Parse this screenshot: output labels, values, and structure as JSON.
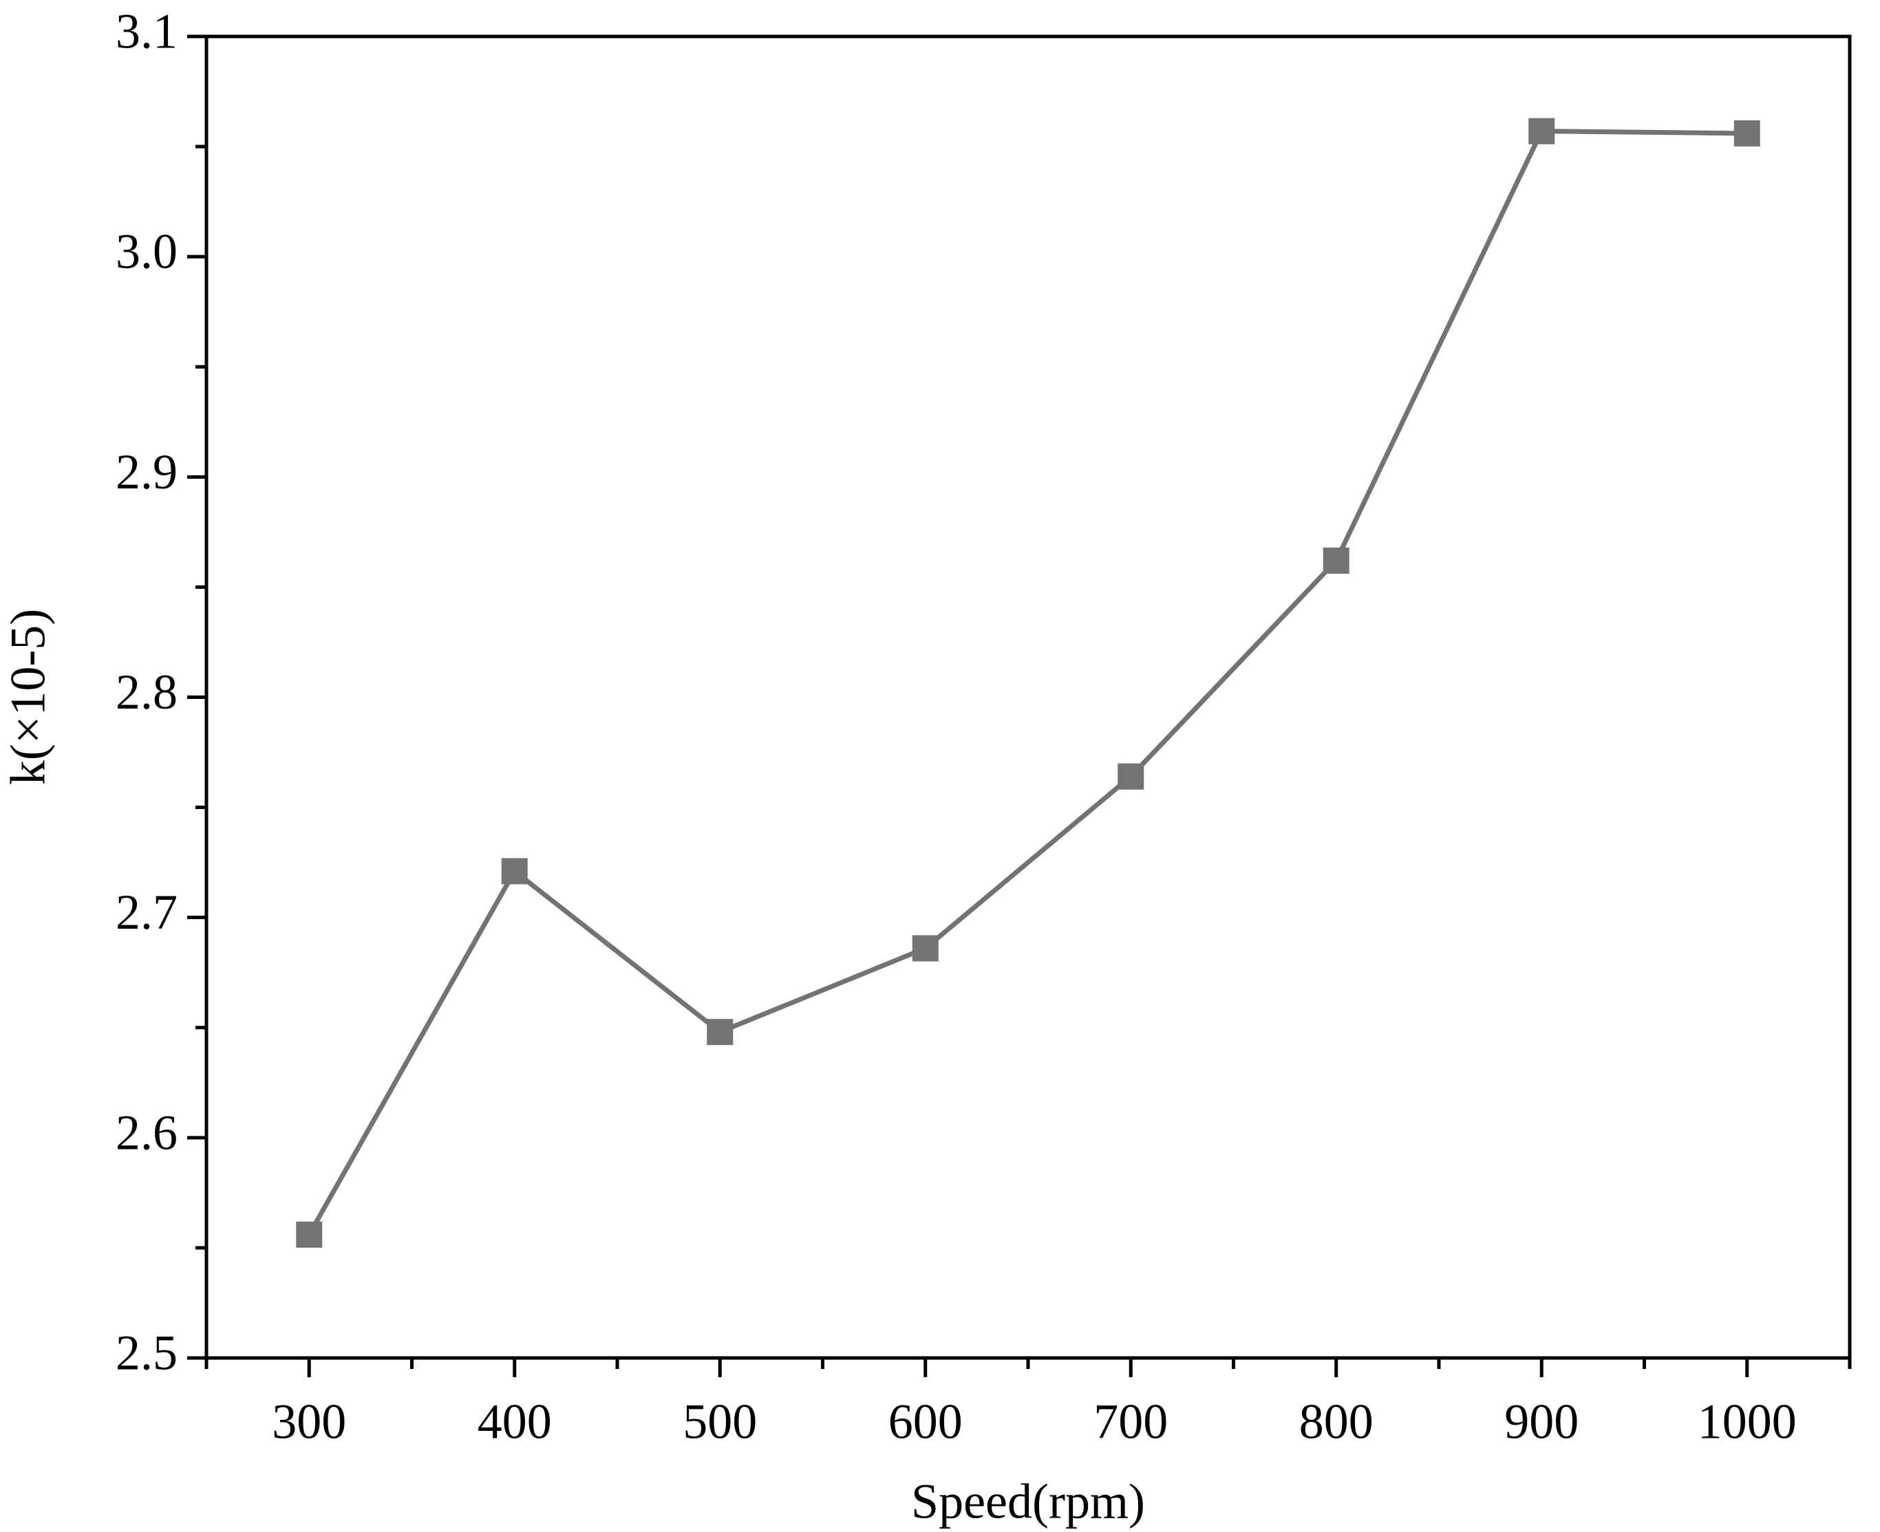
{
  "chart_data": {
    "type": "line",
    "x_label": "Speed(rpm)",
    "y_label": "k(×10-5)",
    "x": [
      300,
      400,
      500,
      600,
      700,
      800,
      900,
      1000
    ],
    "series": [
      {
        "name": "k",
        "color": "#737373",
        "values": [
          2.556,
          2.721,
          2.648,
          2.686,
          2.764,
          2.862,
          3.057,
          3.056
        ]
      }
    ],
    "xlim": [
      250,
      1050
    ],
    "xticks": [
      300,
      400,
      500,
      600,
      700,
      800,
      900,
      1000
    ],
    "ylim": [
      2.5,
      3.1
    ],
    "yticks": [
      2.5,
      2.6,
      2.7,
      2.8,
      2.9,
      {
        "value": 3,
        "label": "3.0"
      },
      3.1
    ],
    "minor_ticks": true,
    "marker": "square",
    "grid": false
  }
}
